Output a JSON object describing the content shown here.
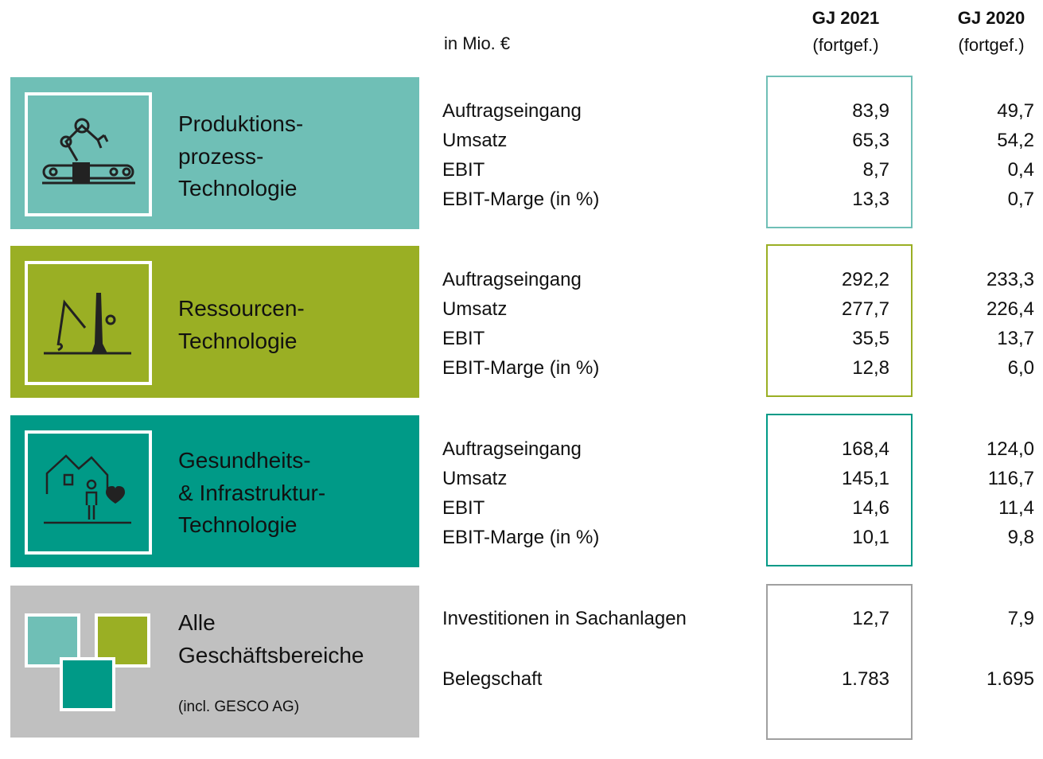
{
  "header": {
    "unit": "in Mio. €",
    "columns": [
      {
        "title": "GJ 2021",
        "subtitle": "(fortgef.)"
      },
      {
        "title": "GJ 2020",
        "subtitle": "(fortgef.)"
      }
    ]
  },
  "segments": [
    {
      "name_lines": [
        "Produktions-",
        "prozess-",
        "Technologie"
      ],
      "rows": [
        {
          "label": "Auftragseingang",
          "values": [
            "83,9",
            "49,7"
          ]
        },
        {
          "label": "Umsatz",
          "values": [
            "65,3",
            "54,2"
          ]
        },
        {
          "label": "EBIT",
          "values": [
            "8,7",
            "0,4"
          ]
        },
        {
          "label": "EBIT-Marge (in %)",
          "values": [
            "13,3",
            "0,7"
          ]
        }
      ]
    },
    {
      "name_lines": [
        "Ressourcen-",
        "Technologie"
      ],
      "rows": [
        {
          "label": "Auftragseingang",
          "values": [
            "292,2",
            "233,3"
          ]
        },
        {
          "label": "Umsatz",
          "values": [
            "277,7",
            "226,4"
          ]
        },
        {
          "label": "EBIT",
          "values": [
            "35,5",
            "13,7"
          ]
        },
        {
          "label": "EBIT-Marge (in %)",
          "values": [
            "12,8",
            "6,0"
          ]
        }
      ]
    },
    {
      "name_lines": [
        "Gesundheits-",
        "& Infrastruktur-",
        "Technologie"
      ],
      "rows": [
        {
          "label": "Auftragseingang",
          "values": [
            "168,4",
            "124,0"
          ]
        },
        {
          "label": "Umsatz",
          "values": [
            "145,1",
            "116,7"
          ]
        },
        {
          "label": "EBIT",
          "values": [
            "14,6",
            "11,4"
          ]
        },
        {
          "label": "EBIT-Marge (in %)",
          "values": [
            "10,1",
            "9,8"
          ]
        }
      ]
    },
    {
      "name_lines": [
        "Alle",
        "Geschäftsbereiche"
      ],
      "note": "(incl. GESCO AG)",
      "rows": [
        {
          "label": "Investitionen in Sachanlagen",
          "values": [
            "12,7",
            "7,9"
          ]
        },
        {
          "label": "Belegschaft",
          "values": [
            "1.783",
            "1.695"
          ]
        }
      ]
    }
  ]
}
